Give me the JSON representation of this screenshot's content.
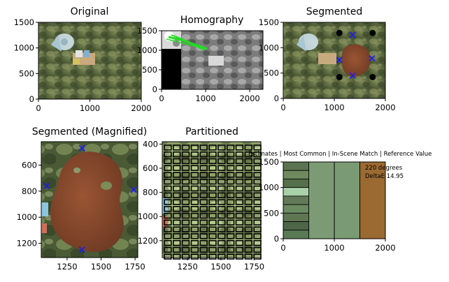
{
  "chart_data": [
    {
      "type": "image",
      "title": "Original",
      "xlim": [
        0,
        2000
      ],
      "ylim": [
        1500,
        0
      ],
      "xticks": [
        0,
        1000,
        2000
      ],
      "yticks": [
        0,
        500,
        1000,
        1500
      ],
      "colors": {
        "background": "#5a6e3f",
        "coral": "#6f7a4a",
        "panel": "#dbe6ec",
        "chart_card": "#c8aa7e"
      }
    },
    {
      "type": "image",
      "title": "Homography",
      "xlim": [
        0,
        2300
      ],
      "ylim": [
        1500,
        0
      ],
      "xticks": [
        0,
        1000,
        2000
      ],
      "yticks": [
        0,
        500,
        1000,
        1500
      ],
      "colors": {
        "matches": "#22dd22",
        "background": "#8a8a8a",
        "mask": "#000000"
      }
    },
    {
      "type": "image",
      "title": "Segmented",
      "xlim": [
        0,
        2000
      ],
      "ylim": [
        1500,
        0
      ],
      "xticks": [
        0,
        1000,
        2000
      ],
      "yticks": [
        0,
        500,
        1000,
        1500
      ],
      "box": {
        "x0": 1100,
        "x1": 1750,
        "y0": 420,
        "y1": 1290
      },
      "markers": [
        {
          "x": 1360,
          "y": 450
        },
        {
          "x": 1100,
          "y": 760
        },
        {
          "x": 1740,
          "y": 790
        },
        {
          "x": 1360,
          "y": 1250
        }
      ],
      "colors": {
        "coral": "#8a4a2e",
        "marker": "#1a1aff",
        "box": "#000000"
      }
    },
    {
      "type": "image",
      "title": "Segmented (Magnified)",
      "xlim": [
        1060,
        1770
      ],
      "ylim": [
        420,
        1310
      ],
      "xticks": [
        1250,
        1500,
        1750
      ],
      "yticks": [
        600,
        800,
        1000,
        1200
      ],
      "markers": [
        {
          "x": 1360,
          "y": 1250
        },
        {
          "x": 1100,
          "y": 760
        },
        {
          "x": 1740,
          "y": 790
        },
        {
          "x": 1360,
          "y": 470
        }
      ],
      "colors": {
        "coral": "#8b4a2d",
        "marker": "#1a1aff"
      }
    },
    {
      "type": "image",
      "title": "Partitioned",
      "xlim": [
        1060,
        1800
      ],
      "ylim": [
        380,
        1340
      ],
      "xticks": [
        1250,
        1500,
        1750
      ],
      "yticks": [
        400,
        600,
        800,
        1000,
        1200
      ],
      "colors": {
        "grid": "#000000",
        "field": "#b3c98a"
      }
    },
    {
      "type": "bar",
      "title": "Estimates | Most Common | In-Scene Match | Reference Value",
      "xlim": [
        0,
        2000
      ],
      "ylim": [
        1500,
        0
      ],
      "xticks": [
        0,
        1000,
        2000
      ],
      "yticks": [
        0,
        500,
        1000,
        1500
      ],
      "annotation": [
        "220 degrees",
        "DeltaE 14.95"
      ],
      "estimate_swatches": [
        "#5c7350",
        "#6e8a5e",
        "#55704a",
        "#a9d0a6",
        "#63795a",
        "#6a8a61",
        "#5f7653",
        "#4d6648",
        "#5a7a55"
      ],
      "columns": [
        {
          "label": "Most Common",
          "from": 500,
          "to": 1000,
          "color": "#7c9b75"
        },
        {
          "label": "In-Scene Match",
          "from": 1000,
          "to": 1500,
          "color": "#7a9a74"
        },
        {
          "label": "Reference Value",
          "from": 1500,
          "to": 2000,
          "color": "#9a6a32"
        }
      ]
    }
  ]
}
